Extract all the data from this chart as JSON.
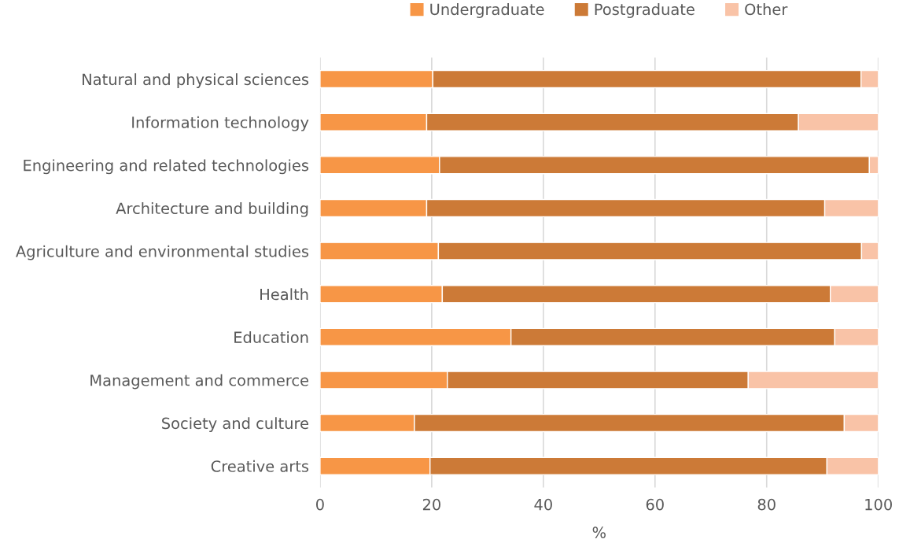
{
  "chart_data": {
    "type": "bar",
    "orientation": "horizontal",
    "stacked": true,
    "xlabel": "%",
    "categories": [
      "Natural and physical sciences",
      "Information technology",
      "Engineering and related technologies",
      "Architecture and building",
      "Agriculture and environmental studies",
      "Health",
      "Education",
      "Management and commerce",
      "Society and culture",
      "Creative arts"
    ],
    "series": [
      {
        "name": "Undergraduate",
        "color": "#f79646",
        "values": [
          20.2,
          19.1,
          21.4,
          19.1,
          21.2,
          21.9,
          34.2,
          22.8,
          16.9,
          19.7
        ]
      },
      {
        "name": "Postgraduate",
        "color": "#cc7a37",
        "values": [
          76.7,
          66.6,
          77.0,
          71.3,
          75.8,
          69.5,
          58.0,
          53.9,
          77.0,
          71.1
        ]
      },
      {
        "name": "Other",
        "color": "#f9c3a7",
        "values": [
          3.1,
          14.3,
          1.6,
          9.6,
          3.0,
          8.6,
          7.8,
          23.3,
          6.1,
          9.2
        ]
      }
    ],
    "xlim": [
      0,
      100
    ],
    "xticks": [
      0,
      20,
      40,
      60,
      80,
      100
    ],
    "grid": "x",
    "legend": "top"
  }
}
